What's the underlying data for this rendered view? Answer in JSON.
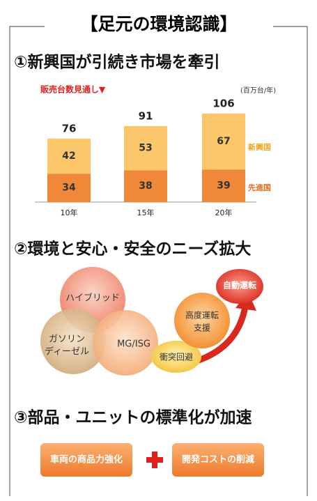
{
  "header": {
    "title": "【足元の環境認識】"
  },
  "sections": [
    {
      "heading": "①新興国が引続き市場を牽引"
    },
    {
      "heading": "②環境と安心・安全のニーズ拡大"
    },
    {
      "heading": "③部品・ユニットの標準化が加速"
    }
  ],
  "chart_data": {
    "type": "bar",
    "stacked": true,
    "subtitle": "販売台数見通し▼",
    "unit_label": "(百万台/年)",
    "categories": [
      "10年",
      "15年",
      "20年"
    ],
    "series": [
      {
        "name": "先進国",
        "color": "#f0883a",
        "values": [
          34,
          38,
          39
        ]
      },
      {
        "name": "新興国",
        "color": "#fcc66a",
        "values": [
          42,
          53,
          67
        ]
      }
    ],
    "totals": [
      76,
      91,
      106
    ]
  },
  "diagram": {
    "venn": [
      {
        "label": [
          "ハイブリッド"
        ]
      },
      {
        "label": [
          "ガソリン",
          "ディーゼル"
        ]
      },
      {
        "label": [
          "MG/ISG"
        ]
      }
    ],
    "steps": [
      {
        "label": [
          "衝突回避"
        ]
      },
      {
        "label": [
          "高度運転",
          "支援"
        ]
      },
      {
        "label": [
          "自動運転"
        ]
      }
    ]
  },
  "buttons": [
    "車両の商品力強化",
    "開発コストの削減"
  ]
}
